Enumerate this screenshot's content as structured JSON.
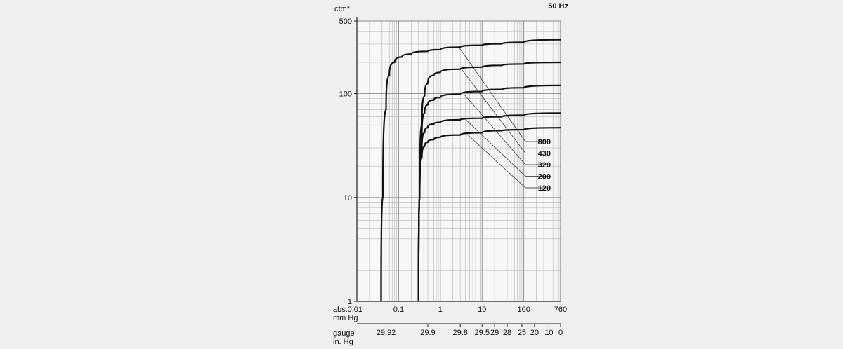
{
  "chart_data": {
    "type": "line",
    "title": "50 Hz",
    "ylabel": "cfm*",
    "xlabel_abs": "abs. mm Hg",
    "xlabel_abs_lines": [
      "abs.",
      "mm Hg"
    ],
    "xlabel_gauge_lines": [
      "gauge",
      "in. Hg"
    ],
    "x_scale": "log",
    "y_scale": "log",
    "xlim": [
      0.01,
      760
    ],
    "ylim": [
      1,
      500
    ],
    "y_ticks": [
      {
        "value": 1,
        "label": "1"
      },
      {
        "value": 10,
        "label": "10"
      },
      {
        "value": 100,
        "label": "100"
      },
      {
        "value": 500,
        "label": "500"
      }
    ],
    "x_ticks": [
      {
        "value": 0.01,
        "label": "0.01"
      },
      {
        "value": 0.1,
        "label": "0.1"
      },
      {
        "value": 1,
        "label": "1"
      },
      {
        "value": 10,
        "label": "10"
      },
      {
        "value": 100,
        "label": "100"
      },
      {
        "value": 760,
        "label": "760"
      }
    ],
    "gauge_ticks": [
      {
        "value": 0.05,
        "label": "29.92"
      },
      {
        "value": 0.5,
        "label": "29.9"
      },
      {
        "value": 3,
        "label": "29.8"
      },
      {
        "value": 10,
        "label": "29.5"
      },
      {
        "value": 20,
        "label": "29"
      },
      {
        "value": 40,
        "label": "28"
      },
      {
        "value": 90,
        "label": "25"
      },
      {
        "value": 180,
        "label": "20"
      },
      {
        "value": 400,
        "label": "10"
      },
      {
        "value": 760,
        "label": "0"
      }
    ],
    "legend_placement": "right",
    "series": [
      {
        "name": "800",
        "x": [
          0.038,
          0.042,
          0.05,
          0.06,
          0.08,
          0.12,
          0.2,
          0.5,
          1,
          3,
          10,
          30,
          100,
          760
        ],
        "y": [
          1,
          10,
          70,
          150,
          200,
          225,
          240,
          255,
          265,
          280,
          292,
          302,
          312,
          330
        ]
      },
      {
        "name": "430",
        "x": [
          0.3,
          0.32,
          0.36,
          0.42,
          0.5,
          0.7,
          1,
          3,
          10,
          30,
          100,
          760
        ],
        "y": [
          1,
          10,
          50,
          95,
          125,
          150,
          160,
          172,
          180,
          187,
          193,
          200
        ]
      },
      {
        "name": "320",
        "x": [
          0.3,
          0.32,
          0.36,
          0.42,
          0.5,
          0.7,
          1,
          3,
          10,
          30,
          100,
          760
        ],
        "y": [
          1,
          10,
          40,
          65,
          78,
          87,
          92,
          99,
          105,
          110,
          114,
          120
        ]
      },
      {
        "name": "200",
        "x": [
          0.3,
          0.32,
          0.36,
          0.42,
          0.5,
          0.7,
          1,
          3,
          10,
          30,
          100,
          760
        ],
        "y": [
          1,
          10,
          30,
          42,
          47,
          51,
          53,
          56,
          58,
          60,
          62,
          65
        ]
      },
      {
        "name": "120",
        "x": [
          0.3,
          0.32,
          0.36,
          0.42,
          0.5,
          0.7,
          1,
          3,
          10,
          30,
          100,
          760
        ],
        "y": [
          1,
          10,
          24,
          31,
          34,
          36,
          38,
          40,
          42,
          44,
          45,
          47
        ]
      }
    ]
  }
}
